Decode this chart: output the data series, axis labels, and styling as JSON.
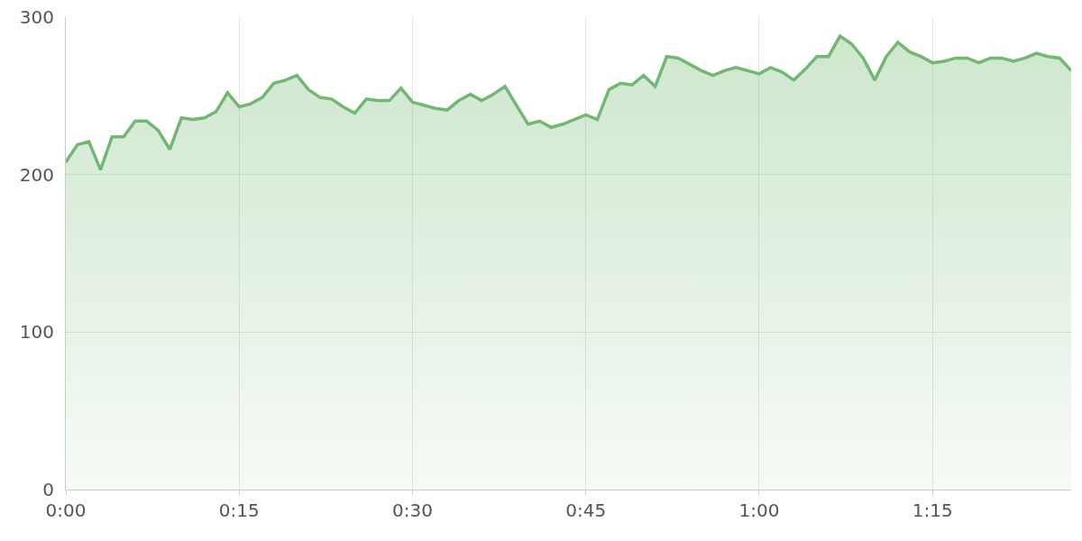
{
  "chart_data": {
    "type": "area",
    "x": [
      0,
      1,
      2,
      3,
      4,
      5,
      6,
      7,
      8,
      9,
      10,
      11,
      12,
      13,
      14,
      15,
      16,
      17,
      18,
      19,
      20,
      21,
      22,
      23,
      24,
      25,
      26,
      27,
      28,
      29,
      30,
      31,
      32,
      33,
      34,
      35,
      36,
      37,
      38,
      39,
      40,
      41,
      42,
      43,
      44,
      45,
      46,
      47,
      48,
      49,
      50,
      51,
      52,
      53,
      54,
      55,
      56,
      57,
      58,
      59,
      60,
      61,
      62,
      63,
      64,
      65,
      66,
      67,
      68,
      69,
      70,
      71,
      72,
      73,
      74,
      75,
      76,
      77,
      78,
      79,
      80,
      81,
      82,
      83,
      84,
      85,
      86,
      87
    ],
    "series": [
      {
        "color": "#72b872",
        "values": [
          208,
          219,
          221,
          203,
          224,
          224,
          234,
          234,
          228,
          216,
          236,
          235,
          236,
          240,
          252,
          243,
          245,
          249,
          258,
          260,
          263,
          254,
          249,
          248,
          243,
          239,
          248,
          247,
          247,
          255,
          246,
          244,
          242,
          241,
          247,
          251,
          247,
          251,
          256,
          244,
          232,
          234,
          230,
          232,
          235,
          238,
          235,
          254,
          258,
          257,
          263,
          256,
          275,
          274,
          270,
          266,
          263,
          266,
          268,
          266,
          264,
          268,
          265,
          260,
          267,
          275,
          275,
          288,
          283,
          274,
          260,
          275,
          284,
          278,
          275,
          271,
          272,
          274,
          274,
          271,
          274,
          274,
          272,
          274,
          277,
          275,
          274,
          266
        ]
      }
    ],
    "xlim": [
      0,
      87
    ],
    "xticks": [
      {
        "value": 0,
        "label": "0:00"
      },
      {
        "value": 15,
        "label": "0:15"
      },
      {
        "value": 30,
        "label": "0:30"
      },
      {
        "value": 45,
        "label": "0:45"
      },
      {
        "value": 60,
        "label": "1:00"
      },
      {
        "value": 75,
        "label": "1:15"
      }
    ],
    "ylim": [
      0,
      300
    ],
    "yticks": [
      0,
      100,
      200,
      300
    ],
    "grid": true,
    "marker": "none",
    "line_style": "solid"
  }
}
